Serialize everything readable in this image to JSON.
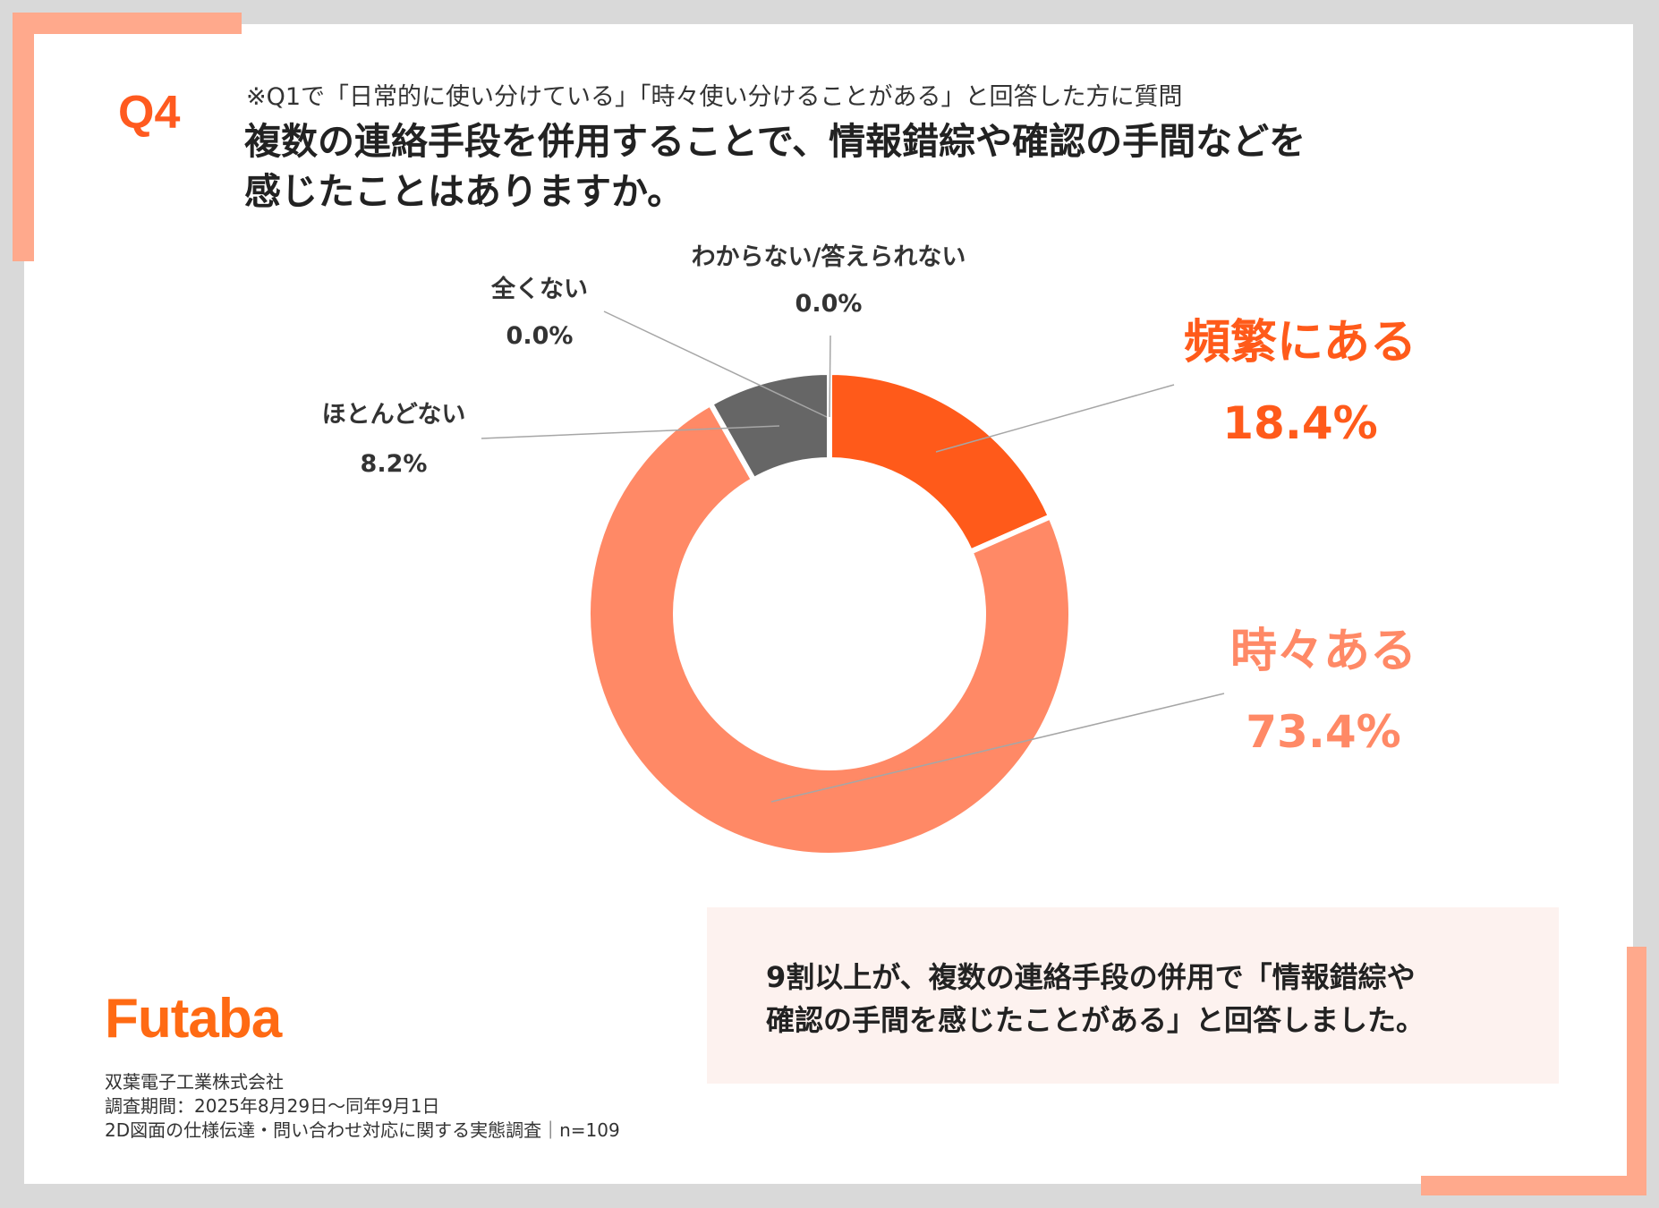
{
  "question": {
    "number": "Q4",
    "note": "※Q1で「日常的に使い分けている」「時々使い分けることがある」と回答した方に質問",
    "title_line1": "複数の連絡手段を併用することで、情報錯綜や確認の手間などを",
    "title_line2": "感じたことはありますか。"
  },
  "chart_data": {
    "type": "pie",
    "style": "donut",
    "slices": [
      {
        "label": "頻繁にある",
        "value": 18.4,
        "value_label": "18.4%",
        "color": "#ff5a1a",
        "text_color": "#ff5a1a"
      },
      {
        "label": "時々ある",
        "value": 73.4,
        "value_label": "73.4%",
        "color": "#ff8966",
        "text_color": "#ff8966"
      },
      {
        "label": "ほとんどない",
        "value": 8.2,
        "value_label": "8.2%",
        "color": "#666666",
        "text_color": "#333333"
      },
      {
        "label": "全くない",
        "value": 0.0,
        "value_label": "0.0%",
        "color": "#999999",
        "text_color": "#333333"
      },
      {
        "label": "わからない/答えられない",
        "value": 0.0,
        "value_label": "0.0%",
        "color": "#bbbbbb",
        "text_color": "#333333"
      }
    ]
  },
  "summary": {
    "line1": "9割以上が、複数の連絡手段の併用で「情報錯綜や",
    "line2": "確認の手間を感じたことがある」と回答しました。"
  },
  "brand": {
    "logo": "Futaba",
    "logo_color": "#ff6a13"
  },
  "footer": {
    "company": "双葉電子工業株式会社",
    "period": "調査期間：2025年8月29日～同年9月1日",
    "survey": "2D図面の仕様伝達・問い合わせ対応に関する実態調査｜n=109"
  },
  "colors": {
    "accent": "#ff5a1f",
    "corner": "#ffa98c",
    "summary_bg": "#fdf2ef"
  }
}
